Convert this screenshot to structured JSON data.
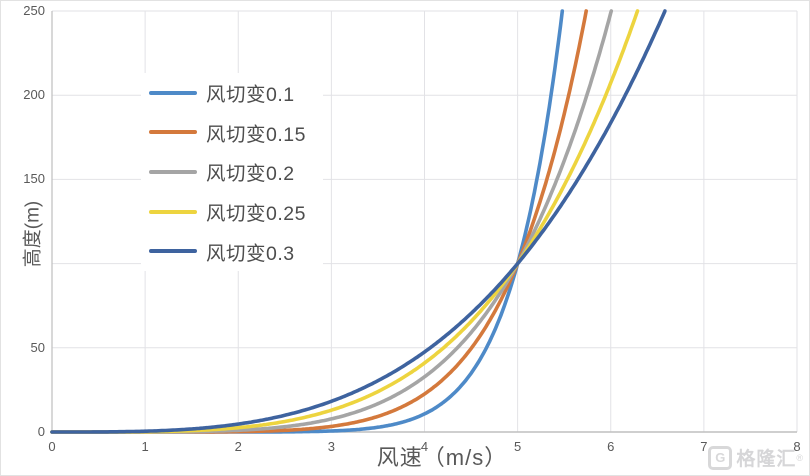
{
  "watermark": {
    "logo": "G",
    "brand": "格隆汇",
    "registered_mark": "®"
  },
  "chart_data": {
    "type": "line",
    "title": "",
    "xlabel": "风速（m/s）",
    "ylabel": "高度(m)",
    "xlim": [
      0,
      8
    ],
    "ylim": [
      0,
      250
    ],
    "x_ticks": [
      "0",
      "1",
      "2",
      "3",
      "4",
      "5",
      "6",
      "7",
      "8"
    ],
    "y_ticks": [
      "0",
      "50",
      "150",
      "200",
      "250"
    ],
    "grid": true,
    "grid_color": "#e2e2e6",
    "axis_color": "#bfbfbf",
    "tick_text_color": "#595959",
    "legend_position": "inside-top-left",
    "model": "height = h_ref × (v / v_ref)^(1/alpha), curves clipped at 250 m",
    "reference_point": {
      "wind_speed_ms": 5,
      "height_m": 100
    },
    "series": [
      {
        "name": "风切变0.1",
        "alpha": 0.1,
        "color": "#4E8AC8",
        "points": [
          [
            0,
            0
          ],
          [
            3,
            0.6
          ],
          [
            3.5,
            2.8
          ],
          [
            4,
            10.7
          ],
          [
            4.5,
            34.9
          ],
          [
            5,
            100
          ],
          [
            5.48,
            250
          ]
        ]
      },
      {
        "name": "风切变0.15",
        "alpha": 0.15,
        "color": "#D4793C",
        "points": [
          [
            0,
            0
          ],
          [
            2.5,
            1.0
          ],
          [
            3,
            3.3
          ],
          [
            3.5,
            9.3
          ],
          [
            4,
            22.6
          ],
          [
            4.5,
            49.5
          ],
          [
            5,
            100
          ],
          [
            5.74,
            250
          ]
        ]
      },
      {
        "name": "风切变0.2",
        "alpha": 0.2,
        "color": "#A5A5A5",
        "points": [
          [
            0,
            0
          ],
          [
            2,
            1.0
          ],
          [
            2.5,
            3.1
          ],
          [
            3,
            7.8
          ],
          [
            3.5,
            16.8
          ],
          [
            4,
            32.8
          ],
          [
            4.5,
            59.0
          ],
          [
            5,
            100
          ],
          [
            5.5,
            161.1
          ],
          [
            6.01,
            250
          ]
        ]
      },
      {
        "name": "风切变0.25",
        "alpha": 0.25,
        "color": "#EDD43F",
        "points": [
          [
            0,
            0
          ],
          [
            2,
            2.6
          ],
          [
            2.5,
            6.3
          ],
          [
            3,
            13.0
          ],
          [
            3.5,
            24.0
          ],
          [
            4,
            41.0
          ],
          [
            4.5,
            65.6
          ],
          [
            5,
            100
          ],
          [
            5.5,
            146.4
          ],
          [
            6,
            207.4
          ],
          [
            6.29,
            250
          ]
        ]
      },
      {
        "name": "风切变0.3",
        "alpha": 0.3,
        "color": "#3E639F",
        "points": [
          [
            0,
            0
          ],
          [
            1.5,
            1.8
          ],
          [
            2,
            4.7
          ],
          [
            2.5,
            9.9
          ],
          [
            3,
            18.2
          ],
          [
            3.5,
            30.5
          ],
          [
            4,
            47.6
          ],
          [
            4.5,
            70.5
          ],
          [
            5,
            100
          ],
          [
            5.5,
            137.4
          ],
          [
            6,
            183.7
          ],
          [
            6.58,
            250
          ]
        ]
      }
    ]
  }
}
